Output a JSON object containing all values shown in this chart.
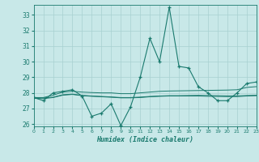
{
  "x": [
    0,
    1,
    2,
    3,
    4,
    5,
    6,
    7,
    8,
    9,
    10,
    11,
    12,
    13,
    14,
    15,
    16,
    17,
    18,
    19,
    20,
    21,
    22,
    23
  ],
  "y_main": [
    27.7,
    27.5,
    28.0,
    28.1,
    28.2,
    27.8,
    26.5,
    26.7,
    27.3,
    25.9,
    27.1,
    29.0,
    31.5,
    30.0,
    33.5,
    29.7,
    29.6,
    28.4,
    28.0,
    27.5,
    27.5,
    28.0,
    28.6,
    28.7
  ],
  "y_trend1": [
    27.7,
    27.7,
    27.85,
    28.05,
    28.1,
    28.05,
    28.02,
    28.0,
    28.0,
    27.95,
    27.95,
    28.0,
    28.05,
    28.1,
    28.12,
    28.13,
    28.14,
    28.15,
    28.16,
    28.17,
    28.18,
    28.2,
    28.35,
    28.4
  ],
  "y_trend2": [
    27.65,
    27.63,
    27.7,
    27.85,
    27.9,
    27.82,
    27.78,
    27.75,
    27.72,
    27.68,
    27.68,
    27.7,
    27.75,
    27.78,
    27.8,
    27.8,
    27.8,
    27.8,
    27.78,
    27.77,
    27.76,
    27.76,
    27.8,
    27.82
  ],
  "y_trend3": [
    27.7,
    27.68,
    27.72,
    27.88,
    27.92,
    27.84,
    27.8,
    27.77,
    27.74,
    27.7,
    27.7,
    27.73,
    27.77,
    27.8,
    27.82,
    27.82,
    27.83,
    27.84,
    27.83,
    27.82,
    27.81,
    27.81,
    27.83,
    27.85
  ],
  "color": "#1a7a6e",
  "bg_color": "#c8e8e8",
  "grid_color": "#a8d0d0",
  "xlabel": "Humidex (Indice chaleur)",
  "ylim_min": 26,
  "ylim_max": 33.5,
  "xlim_min": 0,
  "xlim_max": 23,
  "yticks": [
    26,
    27,
    28,
    29,
    30,
    31,
    32,
    33
  ],
  "xticks": [
    0,
    1,
    2,
    3,
    4,
    5,
    6,
    7,
    8,
    9,
    10,
    11,
    12,
    13,
    14,
    15,
    16,
    17,
    18,
    19,
    20,
    21,
    22,
    23
  ]
}
